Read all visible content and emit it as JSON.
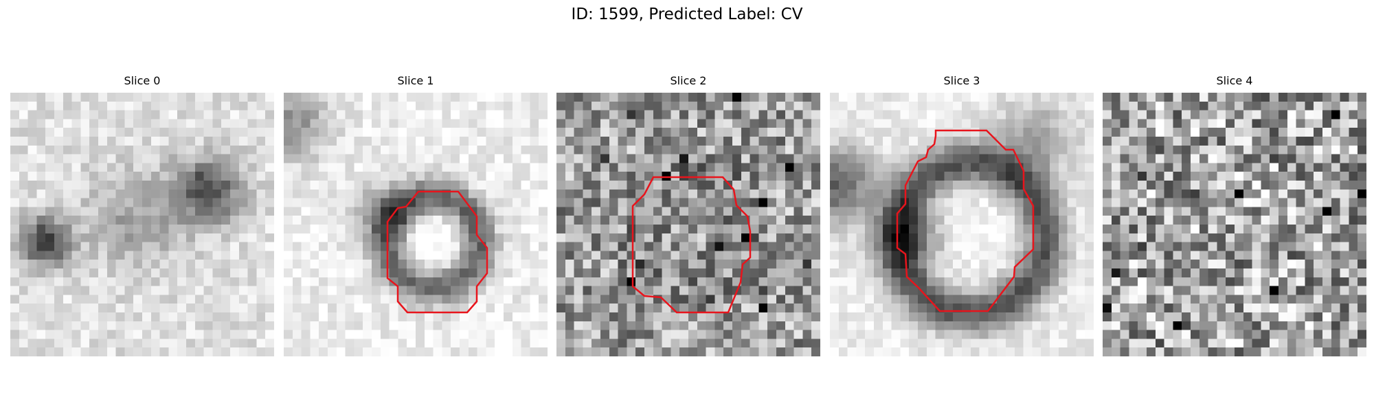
{
  "figure": {
    "title": "ID: 1599, Predicted Label: CV",
    "colormap": "grayscale",
    "contour_color": "#e8141c",
    "grid_size": 30,
    "panels": [
      {
        "title": "Slice 0",
        "texture": "blobs",
        "seed": 11,
        "has_contour": false
      },
      {
        "title": "Slice 1",
        "texture": "ring-small",
        "seed": 23,
        "has_contour": true
      },
      {
        "title": "Slice 2",
        "texture": "noise-medium",
        "seed": 37,
        "has_contour": true
      },
      {
        "title": "Slice 3",
        "texture": "ring-large",
        "seed": 41,
        "has_contour": true
      },
      {
        "title": "Slice 4",
        "texture": "noise-strong",
        "seed": 53,
        "has_contour": false
      }
    ]
  }
}
